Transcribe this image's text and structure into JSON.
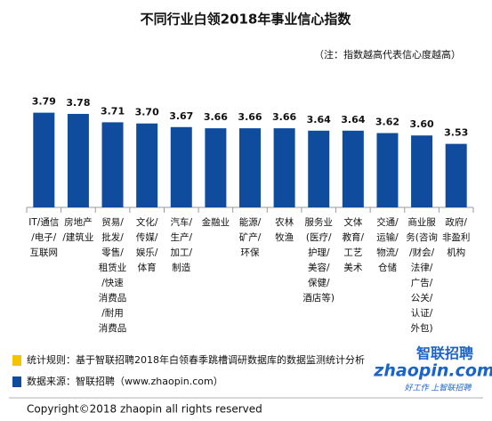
{
  "chart_data": {
    "type": "bar",
    "title": "不同行业白领2018年事业信心指数",
    "note": "（注：指数越高代表信心度越高）",
    "categories": [
      [
        "IT/通信",
        "/电子/",
        "互联网"
      ],
      [
        "房地产",
        "/建筑业"
      ],
      [
        "贸易/",
        "批发/",
        "零售/",
        "租赁业",
        "/快速",
        "消费品",
        "/耐用",
        "消费品"
      ],
      [
        "文化/",
        "传媒/",
        "娱乐/",
        "体育"
      ],
      [
        "汽车/",
        "生产/",
        "加工/",
        "制造"
      ],
      [
        "金融业"
      ],
      [
        "能源/",
        "矿产/",
        "环保"
      ],
      [
        "农林",
        "牧渔"
      ],
      [
        "服务业",
        "(医疗/",
        "护理/",
        "美容/",
        "保健/",
        "酒店等)"
      ],
      [
        "文体",
        "教育/",
        "工艺",
        "美术"
      ],
      [
        "交通/",
        "运输/",
        "物流/",
        "仓储"
      ],
      [
        "商业服",
        "务(咨询",
        "/财会/",
        "法律/",
        "广告/",
        "公关/",
        "认证/",
        "外包)"
      ],
      [
        "政府/",
        "非盈利",
        "机构"
      ]
    ],
    "values": [
      3.79,
      3.78,
      3.71,
      3.7,
      3.67,
      3.66,
      3.66,
      3.66,
      3.64,
      3.64,
      3.62,
      3.6,
      3.53
    ],
    "value_labels": [
      "3.79",
      "3.78",
      "3.71",
      "3.70",
      "3.67",
      "3.66",
      "3.66",
      "3.66",
      "3.64",
      "3.64",
      "3.62",
      "3.60",
      "3.53"
    ],
    "color": "#0f4c9e",
    "ylim": [
      3,
      4.5
    ]
  },
  "footer": {
    "rule": "统计规则：基于智联招聘2018年白领春季跳槽调研数据库的数据监测统计分析",
    "source": "数据来源：智联招聘（www.zhaopin.com）",
    "copyright": "Copyright©2018 zhaopin all rights reserved"
  },
  "logo": {
    "brand": "智联招聘",
    "site": "zhaopin.com",
    "slogan": "好工作 上智联招聘"
  }
}
